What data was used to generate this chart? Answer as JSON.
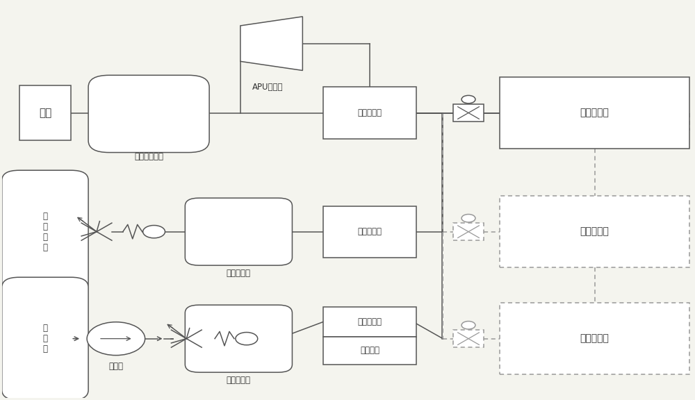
{
  "bg": "#f4f4ee",
  "lc": "#555555",
  "dc": "#999999",
  "bc": "#ffffff",
  "tc": "#333333",
  "lw": 1.1,
  "dlw": 1.0,
  "R1": 0.72,
  "R2": 0.42,
  "R3": 0.15,
  "labels": {
    "atm": "大气",
    "inlet": "飞行器进气道",
    "apu": "APU压缩机",
    "intake_dist": "进气分配器",
    "lox_tank": "液\n氧\n储\n箱",
    "lox_vap": "液氧气化器",
    "oxy_dist": "氧气分配器",
    "fuel_tank": "燃\n料\n箱",
    "fuel_pump": "燃油泵",
    "fuel_heater": "燃油加热器",
    "fuel_dist": "燃油分配器",
    "elec_heater": "电加热器",
    "combustor": "爆震燃烧室"
  }
}
